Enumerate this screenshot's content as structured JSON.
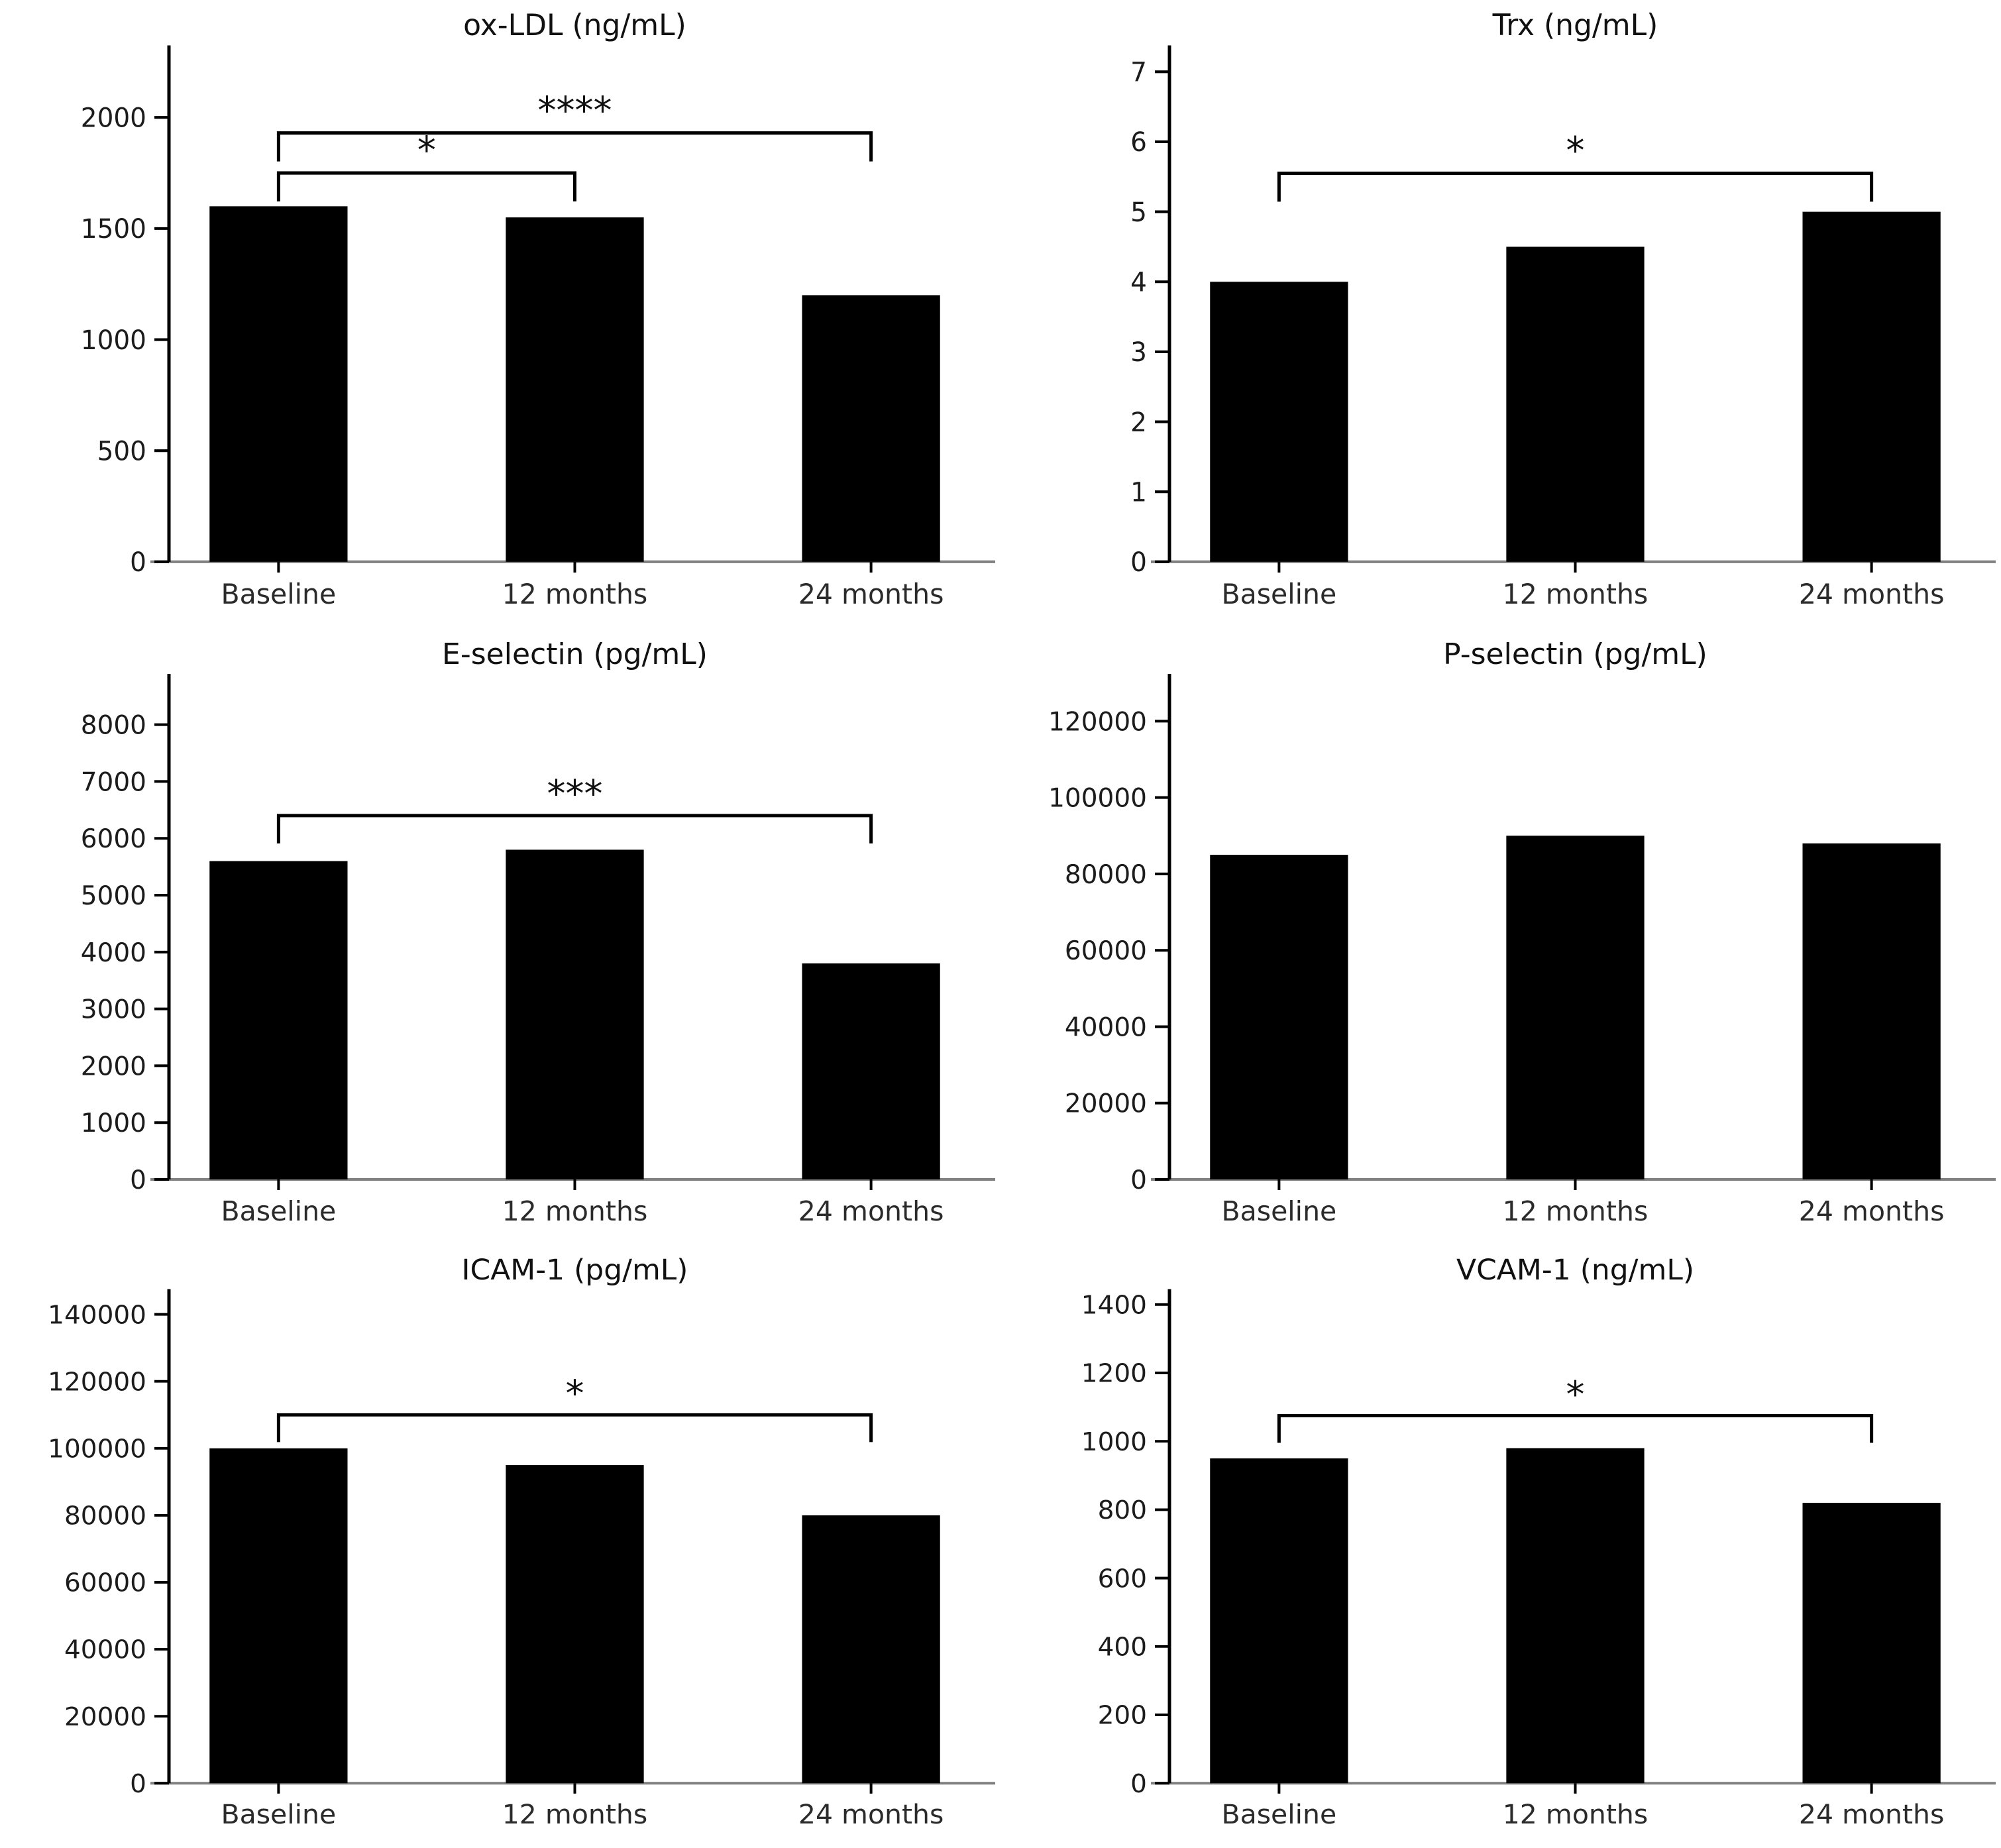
{
  "figure": {
    "background_color": "#ffffff",
    "bar_color": "#000000",
    "left_spine_color": "#000000",
    "bottom_spine_color": "#808080",
    "tick_color": "#000000",
    "text_color": "#1c1c1c",
    "bracket_color": "#000000"
  },
  "chart_data": [
    {
      "type": "bar",
      "title": "ox-LDL (ng/mL)",
      "categories": [
        "Baseline",
        "12 months",
        "24 months"
      ],
      "values": [
        1600,
        1550,
        1200
      ],
      "ylim": [
        0,
        2300
      ],
      "yticks": [
        0,
        500,
        1000,
        1500,
        2000
      ],
      "xlabel": "",
      "ylabel": "",
      "grid": false,
      "legend": null,
      "significance": [
        {
          "from": "Baseline",
          "to": "12 months",
          "label": "*",
          "y": 1750
        },
        {
          "from": "Baseline",
          "to": "24 months",
          "label": "****",
          "y": 1930
        }
      ]
    },
    {
      "type": "bar",
      "title": "Trx (ng/mL)",
      "categories": [
        "Baseline",
        "12 months",
        "24 months"
      ],
      "values": [
        4,
        4.5,
        5
      ],
      "ylim": [
        0,
        7.3
      ],
      "yticks": [
        0,
        1,
        2,
        3,
        4,
        5,
        6,
        7
      ],
      "xlabel": "",
      "ylabel": "",
      "grid": false,
      "legend": null,
      "significance": [
        {
          "from": "Baseline",
          "to": "24 months",
          "label": "*",
          "y": 5.55
        }
      ]
    },
    {
      "type": "bar",
      "title": "E-selectin (pg/mL)",
      "categories": [
        "Baseline",
        "12 months",
        "24 months"
      ],
      "values": [
        5600,
        5800,
        3800
      ],
      "ylim": [
        0,
        8800
      ],
      "yticks": [
        0,
        1000,
        2000,
        3000,
        4000,
        5000,
        6000,
        7000,
        8000
      ],
      "xlabel": "",
      "ylabel": "",
      "grid": false,
      "legend": null,
      "significance": [
        {
          "from": "Baseline",
          "to": "24 months",
          "label": "***",
          "y": 6400
        }
      ]
    },
    {
      "type": "bar",
      "title": "P-selectin (pg/mL)",
      "categories": [
        "Baseline",
        "12 months",
        "24 months"
      ],
      "values": [
        85000,
        90000,
        88000
      ],
      "ylim": [
        0,
        131000
      ],
      "yticks": [
        0,
        20000,
        40000,
        60000,
        80000,
        100000,
        120000
      ],
      "xlabel": "",
      "ylabel": "",
      "grid": false,
      "legend": null,
      "significance": []
    },
    {
      "type": "bar",
      "title": "ICAM-1 (pg/mL)",
      "categories": [
        "Baseline",
        "12 months",
        "24 months"
      ],
      "values": [
        100000,
        95000,
        80000
      ],
      "ylim": [
        0,
        146000
      ],
      "yticks": [
        0,
        20000,
        40000,
        60000,
        80000,
        100000,
        120000,
        140000
      ],
      "xlabel": "",
      "ylabel": "",
      "grid": false,
      "legend": null,
      "significance": [
        {
          "from": "Baseline",
          "to": "24 months",
          "label": "*",
          "y": 110000
        }
      ]
    },
    {
      "type": "bar",
      "title": "VCAM-1 (ng/mL)",
      "categories": [
        "Baseline",
        "12 months",
        "24 months"
      ],
      "values": [
        950,
        980,
        820
      ],
      "ylim": [
        0,
        1430
      ],
      "yticks": [
        0,
        200,
        400,
        600,
        800,
        1000,
        1200,
        1400
      ],
      "xlabel": "",
      "ylabel": "",
      "grid": false,
      "legend": null,
      "significance": [
        {
          "from": "Baseline",
          "to": "24 months",
          "label": "*",
          "y": 1075
        }
      ]
    }
  ]
}
